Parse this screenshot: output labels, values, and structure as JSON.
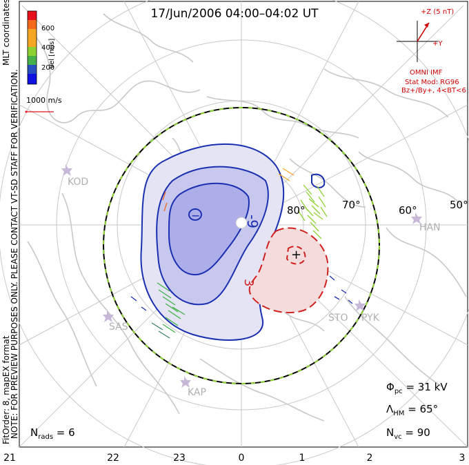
{
  "title": "17/Jun/2006 04:00–04:02 UT",
  "coords_label": "MLT coordinates",
  "note_line1": "NOTE: FOR PREVIEW PURPOSES ONLY. PLEASE CONTACT VT-SD STAFF FOR VERIFICATION.",
  "note_line2": "FitOrder: 8,  mapEX format",
  "colorbar": {
    "unit_label": "Vel [m/s]",
    "ticks": [
      "600",
      "400",
      "200"
    ],
    "colors": [
      "#e8121c",
      "#f46a1a",
      "#f5a623",
      "#8dd232",
      "#46b04a",
      "#3a7f6a",
      "#2a4fc0",
      "#1010e0"
    ]
  },
  "vector_scale": "1000 m/s",
  "imf": {
    "z_label": "+Z (5 nT)",
    "y_label": "+Y",
    "source": "OMNI IMF",
    "stat_mod": "Stat Mod: RG96",
    "bin": "Bz+/By+, 4<BT<6"
  },
  "stats": {
    "phi_pc": "31 kV",
    "lambda_hm": "65°",
    "n_vc": "90",
    "n_rads": "6"
  },
  "mlt_ticks": [
    "21",
    "22",
    "23",
    "0",
    "1",
    "2",
    "3"
  ],
  "lat_labels": [
    "80°",
    "70°",
    "60°",
    "50°"
  ],
  "stations": [
    "KOD",
    "SAS",
    "KAP",
    "STO",
    "PYK",
    "HAN"
  ],
  "potential_markers": {
    "min": "−",
    "max": "+"
  },
  "contour_labels": [
    "-9",
    "3"
  ],
  "colors": {
    "negative_cell": "#1a2eb0",
    "positive_cell": "#d02020",
    "coast": "#c8c8c8",
    "grid": "#c8c8c8"
  }
}
